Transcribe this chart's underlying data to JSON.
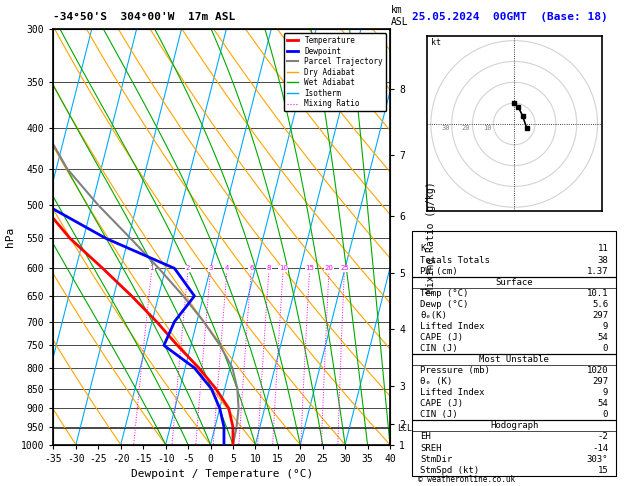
{
  "title_left": "-34°50'S  304°00'W  17m ASL",
  "title_right": "25.05.2024  00GMT  (Base: 18)",
  "xlabel": "Dewpoint / Temperature (°C)",
  "ylabel_left": "hPa",
  "xmin": -35,
  "xmax": 40,
  "pressure_ticks": [
    300,
    350,
    400,
    450,
    500,
    550,
    600,
    650,
    700,
    750,
    800,
    850,
    900,
    950,
    1000
  ],
  "km_values": [
    8,
    7,
    6,
    5,
    4,
    3,
    2,
    1
  ],
  "km_pressures": [
    357,
    432,
    516,
    608,
    715,
    843,
    943,
    1000
  ],
  "lcl_pressure": 953,
  "temperature": [
    5.0,
    4.0,
    2.0,
    -2.0,
    -7.0,
    -13.0,
    -19.0,
    -26.0,
    -34.0,
    -43.0,
    -51.0,
    -56.0,
    -60.0,
    -64.0,
    -65.0
  ],
  "temp_pressures": [
    1000,
    950,
    900,
    850,
    800,
    750,
    700,
    650,
    600,
    550,
    500,
    450,
    400,
    350,
    300
  ],
  "dewpoint": [
    3.0,
    2.0,
    0.0,
    -3.0,
    -8.0,
    -16.0,
    -15.0,
    -12.0,
    -18.0,
    -35.0,
    -50.0,
    -60.0,
    -65.0,
    -68.0,
    -70.0
  ],
  "dewp_pressures": [
    1000,
    950,
    900,
    850,
    800,
    750,
    700,
    650,
    600,
    550,
    500,
    450,
    400,
    350,
    300
  ],
  "parcel_temp": [
    5.0,
    4.8,
    4.2,
    2.8,
    0.5,
    -3.5,
    -8.5,
    -14.5,
    -21.5,
    -29.5,
    -38.5,
    -47.5,
    -55.0,
    -61.0,
    -65.0
  ],
  "parcel_pressures": [
    1000,
    950,
    900,
    850,
    800,
    750,
    700,
    650,
    600,
    550,
    500,
    450,
    400,
    350,
    300
  ],
  "skew": 45.0,
  "temp_color": "#ff0000",
  "dewp_color": "#0000ff",
  "parcel_color": "#808080",
  "dry_adiabat_color": "#ffa500",
  "wet_adiabat_color": "#00aa00",
  "isotherm_color": "#00aaff",
  "mixing_ratio_color": "#ff00ff",
  "mixing_ratio_values": [
    1,
    2,
    3,
    4,
    6,
    8,
    10,
    15,
    20,
    25
  ],
  "stats": {
    "K": 11,
    "Totals Totals": 38,
    "PW (cm)": 1.37,
    "Surface Temp": 10.1,
    "Surface Dewp": 5.6,
    "Surface theta_e": 297,
    "Surface Lifted Index": 9,
    "Surface CAPE": 54,
    "Surface CIN": 0,
    "MU Pressure": 1020,
    "MU theta_e": 297,
    "MU Lifted Index": 9,
    "MU CAPE": 54,
    "MU CIN": 0,
    "EH": -2,
    "SREH": -14,
    "StmDir": "303°",
    "StmSpd": 15
  }
}
